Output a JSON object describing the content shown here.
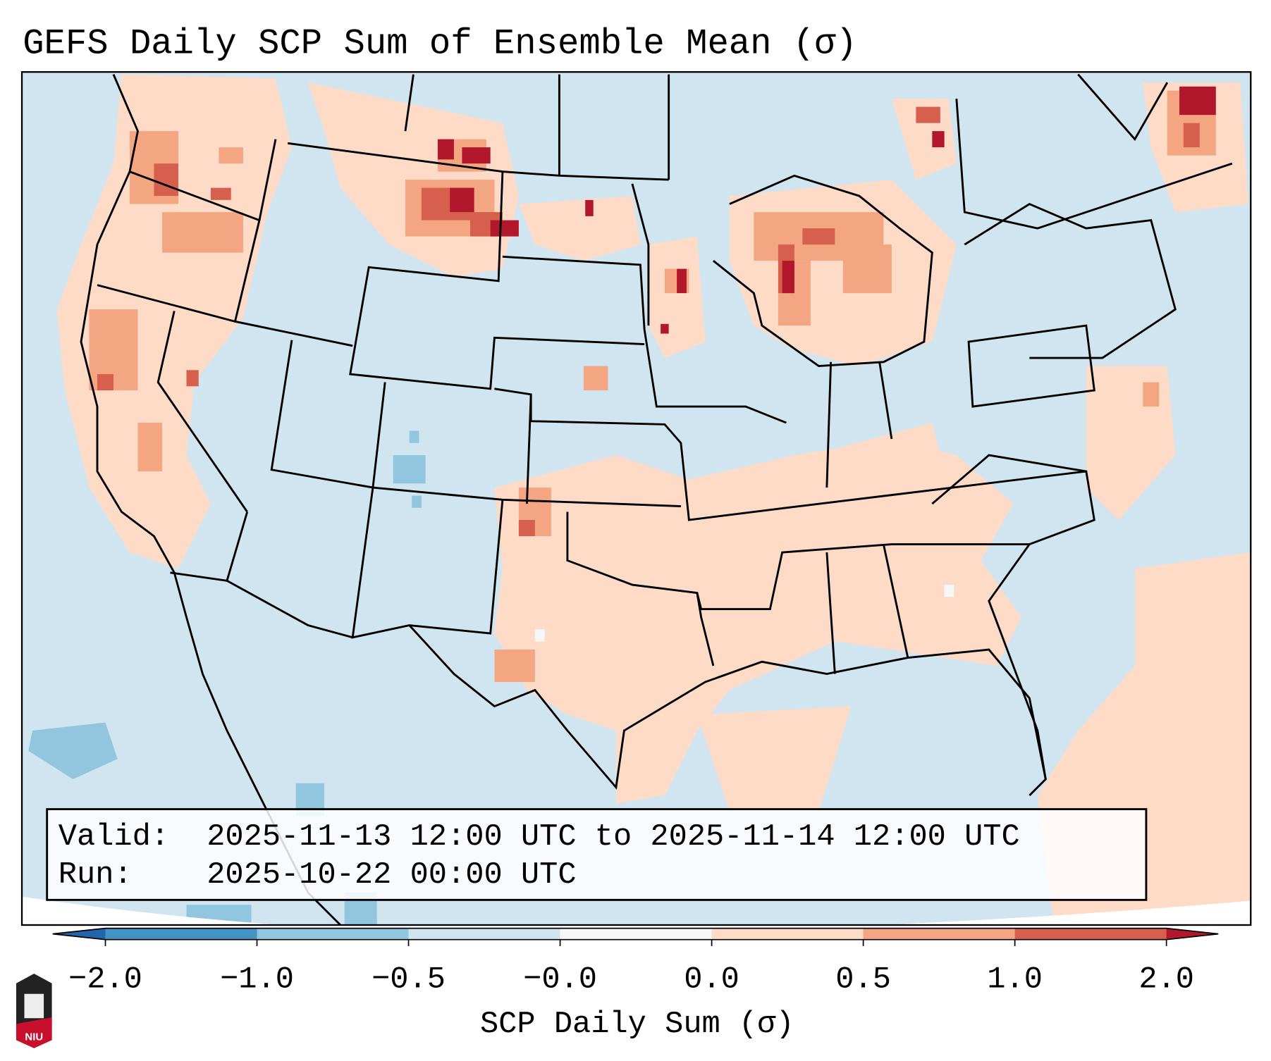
{
  "title": "GEFS Daily SCP Sum of Ensemble Mean (σ)",
  "info_box": {
    "valid_label": "Valid:",
    "valid_value": "2025-11-13 12:00 UTC to 2025-11-14 12:00 UTC",
    "run_label": "Run:",
    "run_value": "2025-10-22 00:00 UTC"
  },
  "colorbar": {
    "label": "SCP Daily Sum (σ)",
    "ticks": [
      "−2.0",
      "−1.0",
      "−0.5",
      "−0.0",
      "0.0",
      "0.5",
      "1.0",
      "2.0"
    ],
    "bins": [
      {
        "range": "< -2.0",
        "color": "#2166ac"
      },
      {
        "range": "-2.0 to -1.0",
        "color": "#4393c3"
      },
      {
        "range": "-1.0 to -0.5",
        "color": "#92c5de"
      },
      {
        "range": "-0.5 to -0.0",
        "color": "#d1e5f0"
      },
      {
        "range": "-0.0 to 0.0",
        "color": "#f7f7f7"
      },
      {
        "range": "0.0 to 0.5",
        "color": "#fddbc7"
      },
      {
        "range": "0.5 to 1.0",
        "color": "#f4a582"
      },
      {
        "range": "1.0 to 2.0",
        "color": "#d6604d"
      },
      {
        "range": "> 2.0",
        "color": "#b2182b"
      }
    ]
  },
  "logo": {
    "text": "NIU"
  }
}
